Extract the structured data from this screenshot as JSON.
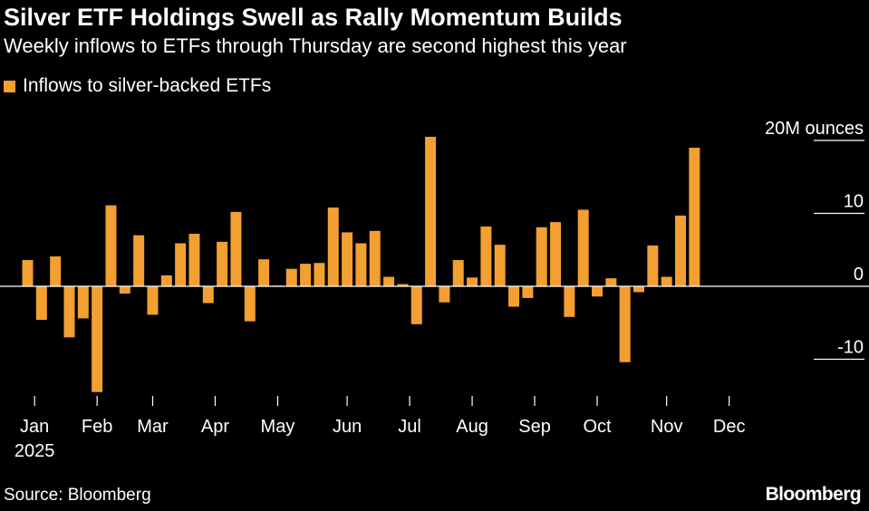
{
  "title": "Silver ETF Holdings Swell as Rally Momentum Builds",
  "subtitle": "Weekly inflows to ETFs through Thursday are second highest this year",
  "legend": {
    "label": "Inflows to silver-backed ETFs"
  },
  "source": "Source: Bloomberg",
  "brand": "Bloomberg",
  "colors": {
    "background": "#000000",
    "bar": "#f39f31",
    "text": "#ffffff",
    "zero_line": "#ffffff",
    "axis": "#ffffff"
  },
  "chart_data": {
    "type": "bar",
    "title": "Silver ETF Holdings Swell as Rally Momentum Builds",
    "series_name": "Inflows to silver-backed ETFs",
    "unit_label": "20M ounces",
    "ylim": [
      -14.5,
      20.5
    ],
    "y_ticks": [
      {
        "value": 20,
        "label": "20M ounces"
      },
      {
        "value": 10,
        "label": "10"
      },
      {
        "value": 0,
        "label": "0"
      },
      {
        "value": -10,
        "label": "-10"
      }
    ],
    "x_ticks": [
      {
        "week": 0.5,
        "label": "Jan"
      },
      {
        "week": 5,
        "label": "Feb"
      },
      {
        "week": 9,
        "label": "Mar"
      },
      {
        "week": 13.5,
        "label": "Apr"
      },
      {
        "week": 18,
        "label": "May"
      },
      {
        "week": 23,
        "label": "Jun"
      },
      {
        "week": 27.5,
        "label": "Jul"
      },
      {
        "week": 32,
        "label": "Aug"
      },
      {
        "week": 36.5,
        "label": "Sep"
      },
      {
        "week": 41,
        "label": "Oct"
      },
      {
        "week": 46,
        "label": "Nov"
      },
      {
        "week": 50.5,
        "label": "Dec"
      }
    ],
    "year_label": "2025",
    "values": [
      3.6,
      -4.6,
      4.1,
      -7.0,
      -4.4,
      -14.5,
      11.1,
      -1.0,
      7.0,
      -3.9,
      1.5,
      5.9,
      7.2,
      -2.3,
      6.1,
      10.2,
      -4.8,
      3.7,
      0.1,
      2.4,
      3.1,
      3.2,
      10.8,
      7.4,
      5.9,
      7.6,
      1.3,
      0.3,
      -5.2,
      20.5,
      -2.2,
      3.6,
      1.2,
      8.2,
      5.7,
      -2.8,
      -1.6,
      8.1,
      8.8,
      -4.2,
      10.5,
      -1.4,
      1.1,
      -10.4,
      -0.8,
      5.6,
      1.3,
      9.7,
      19.0
    ]
  }
}
